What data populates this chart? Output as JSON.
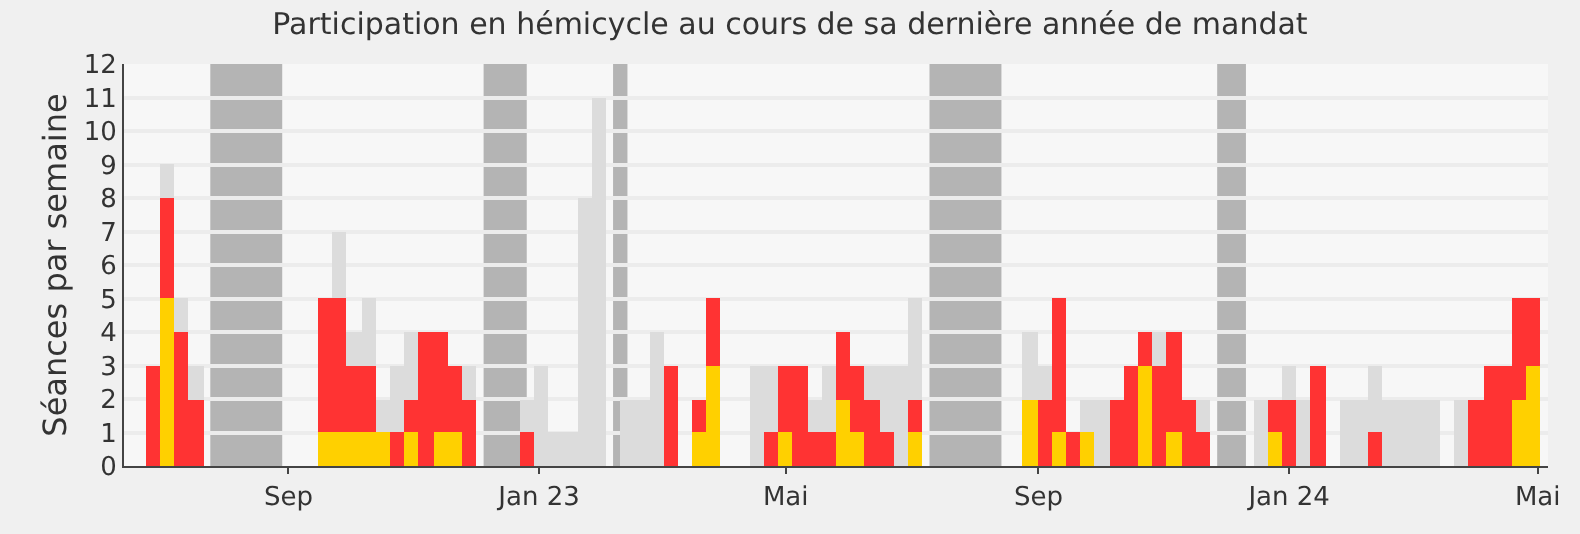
{
  "chart_data": {
    "type": "bar",
    "title": "Participation en hémicycle au cours de sa dernière année de mandat",
    "ylabel": "Séances par semaine",
    "x": [
      "2022-06-27",
      "2022-07-04",
      "2022-07-11",
      "2022-07-18",
      "2022-09-19",
      "2022-09-26",
      "2022-10-03",
      "2022-10-10",
      "2022-10-17",
      "2022-10-24",
      "2022-10-31",
      "2022-11-07",
      "2022-11-14",
      "2022-11-21",
      "2022-11-28",
      "2022-12-26",
      "2023-01-02",
      "2023-01-09",
      "2023-01-16",
      "2023-01-23",
      "2023-01-30",
      "2023-02-13",
      "2023-02-20",
      "2023-02-27",
      "2023-03-06",
      "2023-03-20",
      "2023-03-27",
      "2023-04-17",
      "2023-04-24",
      "2023-05-01",
      "2023-05-08",
      "2023-05-15",
      "2023-05-22",
      "2023-05-29",
      "2023-06-05",
      "2023-06-12",
      "2023-06-19",
      "2023-06-26",
      "2023-07-03",
      "2023-08-28",
      "2023-09-04",
      "2023-09-11",
      "2023-09-18",
      "2023-09-25",
      "2023-10-02",
      "2023-10-09",
      "2023-10-16",
      "2023-10-23",
      "2023-10-30",
      "2023-11-06",
      "2023-11-13",
      "2023-11-20",
      "2023-12-18",
      "2023-12-25",
      "2024-01-01",
      "2024-01-08",
      "2024-01-15",
      "2024-01-29",
      "2024-02-05",
      "2024-02-12",
      "2024-02-19",
      "2024-02-26",
      "2024-03-04",
      "2024-03-11",
      "2024-03-25",
      "2024-04-01",
      "2024-04-08",
      "2024-04-15",
      "2024-04-22",
      "2024-04-29"
    ],
    "stacked": true,
    "series": [
      {
        "color": "#ffd000",
        "values": [
          null,
          5,
          null,
          null,
          1,
          1,
          1,
          1,
          1,
          null,
          1,
          null,
          1,
          1,
          null,
          null,
          null,
          null,
          null,
          null,
          null,
          null,
          null,
          null,
          null,
          1,
          3,
          null,
          null,
          1,
          null,
          null,
          null,
          2,
          1,
          null,
          null,
          null,
          1,
          2,
          null,
          1,
          null,
          1,
          null,
          null,
          null,
          3,
          null,
          1,
          null,
          null,
          null,
          1,
          null,
          null,
          null,
          null,
          null,
          null,
          null,
          null,
          null,
          null,
          null,
          null,
          null,
          null,
          2,
          3
        ]
      },
      {
        "color": "#ff3333",
        "values": [
          3,
          3,
          4,
          2,
          4,
          4,
          2,
          2,
          null,
          1,
          1,
          4,
          3,
          2,
          2,
          1,
          null,
          null,
          null,
          null,
          null,
          null,
          null,
          null,
          3,
          1,
          2,
          null,
          1,
          2,
          3,
          1,
          1,
          2,
          2,
          2,
          1,
          null,
          1,
          null,
          2,
          4,
          1,
          null,
          null,
          2,
          3,
          1,
          3,
          3,
          2,
          1,
          null,
          1,
          2,
          null,
          3,
          null,
          null,
          1,
          null,
          null,
          null,
          null,
          null,
          2,
          3,
          3,
          3,
          2
        ]
      },
      {
        "color": "#dcdcdc",
        "values": [
          null,
          1,
          1,
          1,
          null,
          2,
          1,
          2,
          1,
          2,
          2,
          null,
          null,
          null,
          1,
          1,
          3,
          1,
          1,
          8,
          11,
          2,
          2,
          4,
          null,
          null,
          null,
          3,
          2,
          null,
          null,
          1,
          2,
          null,
          null,
          1,
          2,
          3,
          3,
          2,
          1,
          null,
          null,
          1,
          2,
          null,
          null,
          null,
          1,
          null,
          null,
          1,
          2,
          null,
          1,
          2,
          null,
          2,
          2,
          2,
          2,
          2,
          2,
          2,
          2,
          null,
          null,
          null,
          null,
          null
        ]
      }
    ],
    "bands": [
      {
        "axis": "x",
        "from": "2022-07-25",
        "to": "2022-08-29",
        "color": "#b4b4b4"
      },
      {
        "axis": "x",
        "from": "2022-12-05",
        "to": "2022-12-26",
        "color": "#b4b4b4"
      },
      {
        "axis": "x",
        "from": "2023-02-06",
        "to": "2023-02-13",
        "color": "#b4b4b4"
      },
      {
        "axis": "x",
        "from": "2023-07-10",
        "to": "2023-08-14",
        "color": "#b4b4b4"
      },
      {
        "axis": "x",
        "from": "2023-11-27",
        "to": "2023-12-11",
        "color": "#b4b4b4"
      }
    ],
    "xlim": [
      "2022-06-13",
      "2024-05-06"
    ],
    "xticks": [
      {
        "value": "2022-09-01",
        "label": "Sep"
      },
      {
        "value": "2023-01-01",
        "label": "Jan 23"
      },
      {
        "value": "2023-05-01",
        "label": "Mai"
      },
      {
        "value": "2023-09-01",
        "label": "Sep"
      },
      {
        "value": "2024-01-01",
        "label": "Jan 24"
      },
      {
        "value": "2024-05-01",
        "label": "Mai"
      }
    ],
    "ylim": [
      0,
      12
    ],
    "yticks": [
      0,
      1,
      2,
      3,
      4,
      5,
      6,
      7,
      8,
      9,
      10,
      11,
      12
    ],
    "grid": "y"
  }
}
